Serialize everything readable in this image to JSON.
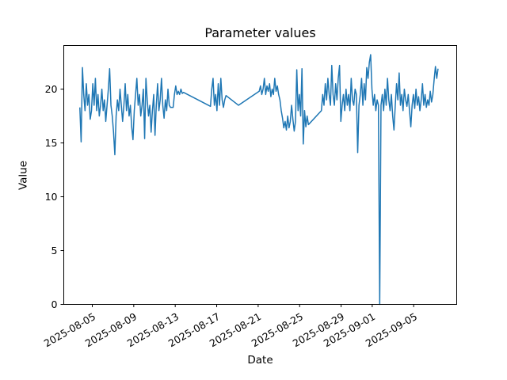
{
  "figure_title": "Parameter values",
  "chart_data": {
    "type": "line",
    "title": "Parameter values",
    "xlabel": "Date",
    "ylabel": "Value",
    "grid": false,
    "legend": null,
    "line_color": "#1f77b4",
    "line_width": 1.5,
    "axis_color": "#000000",
    "background_color": "#ffffff",
    "x_unit": "days since 2025-08-04T00:00",
    "xlim": [
      -1.75,
      36.15
    ],
    "ylim": [
      0,
      24.05
    ],
    "x_ticks": [
      {
        "t": 1,
        "label": "2025-08-05"
      },
      {
        "t": 5,
        "label": "2025-08-09"
      },
      {
        "t": 9,
        "label": "2025-08-13"
      },
      {
        "t": 13,
        "label": "2025-08-17"
      },
      {
        "t": 17,
        "label": "2025-08-21"
      },
      {
        "t": 21,
        "label": "2025-08-25"
      },
      {
        "t": 25,
        "label": "2025-08-29"
      },
      {
        "t": 28,
        "label": "2025-09-01"
      },
      {
        "t": 32,
        "label": "2025-09-05"
      }
    ],
    "y_ticks": [
      0,
      5,
      10,
      15,
      20
    ],
    "x_tick_label_rotation_deg": 30,
    "series": [
      {
        "name": "parameter-values",
        "segments": [
          {
            "t0": -0.2,
            "dt": 0.125,
            "values": [
              18.3,
              15.1,
              22.0,
              19.5,
              18.0,
              20.5,
              18.5,
              19.5,
              17.2,
              18.0,
              20.5,
              18.5,
              21.0,
              18.0,
              19.5,
              17.5,
              18.5,
              20.0,
              18.0,
              19.0,
              17.0,
              18.5,
              20.0,
              21.9,
              18.5,
              17.5,
              16.0,
              13.9,
              17.5,
              19.0,
              18.0,
              20.0,
              18.5,
              17.0,
              18.5,
              20.5,
              18.0,
              19.5,
              17.5,
              18.5,
              16.5,
              15.3,
              18.0,
              19.5,
              21.0,
              18.5,
              19.5,
              17.5,
              18.5,
              20.0,
              15.4,
              21.0,
              19.0,
              17.5,
              18.5,
              16.0,
              18.0,
              19.5,
              15.7,
              18.5,
              20.5,
              18.0,
              19.0,
              21.0,
              18.5,
              17.3,
              19.0,
              18.0,
              20.0,
              18.5,
              18.3,
              18.3,
              18.3,
              19.5,
              20.3,
              19.5,
              19.8,
              19.5,
              20.0,
              19.6,
              19.7
            ]
          },
          {
            "pts": [
              [
                9.8,
                19.7
              ],
              [
                12.4,
                18.4
              ]
            ]
          },
          {
            "t0": 12.4,
            "dt": 0.125,
            "values": [
              18.4,
              20.0,
              21.0,
              18.5,
              19.5,
              18.0,
              20.5,
              18.5,
              21.0,
              19.0,
              18.3,
              19.0,
              19.4
            ]
          },
          {
            "pts": [
              [
                13.9,
                19.4
              ],
              [
                15.1,
                18.5
              ],
              [
                17.1,
                19.8
              ]
            ]
          },
          {
            "t0": 17.1,
            "dt": 0.125,
            "values": [
              19.8,
              20.3,
              19.5,
              20.0,
              21.0,
              19.5,
              20.3,
              19.8,
              20.5,
              19.3,
              20.0,
              19.5,
              21.0,
              19.8,
              20.3,
              19.5,
              19.0,
              18.0,
              17.3,
              16.4,
              17.0,
              16.2,
              17.5,
              16.4,
              17.0,
              18.5,
              17.2,
              16.1,
              17.0,
              21.8,
              18.0,
              19.5,
              17.5,
              21.9,
              14.9,
              18.0,
              16.5,
              17.5,
              16.7
            ]
          },
          {
            "pts": [
              [
                21.85,
                16.7
              ],
              [
                23.1,
                18.0
              ]
            ]
          },
          {
            "t0": 23.1,
            "dt": 0.125,
            "values": [
              18.0,
              19.5,
              18.5,
              20.5,
              19.0,
              21.0,
              19.5,
              18.5,
              22.2,
              19.5,
              18.5,
              20.5,
              19.0,
              21.0,
              22.2,
              17.0,
              18.5,
              19.5,
              18.0,
              20.0,
              18.5,
              19.5,
              18.0,
              21.0,
              19.0,
              18.5,
              20.0,
              19.5,
              14.1,
              18.5,
              19.5,
              21.0,
              18.5,
              20.5,
              19.0,
              22.0,
              21.0,
              22.5,
              23.2,
              20.0,
              18.5,
              19.5,
              18.0,
              19.0,
              18.5,
              0.0,
              18.5,
              19.5,
              18.0,
              20.0,
              18.5,
              21.0,
              19.0,
              18.0,
              19.5,
              17.5,
              16.2,
              18.5,
              20.5,
              19.0,
              21.5,
              18.5,
              19.5,
              18.0,
              20.0,
              19.0,
              18.4,
              19.5,
              18.0,
              16.5,
              18.5,
              19.5,
              18.2,
              20.0,
              18.5,
              19.3,
              18.0,
              19.0,
              20.5,
              18.5,
              19.5,
              18.3,
              19.0,
              18.5,
              19.8,
              18.8,
              19.5,
              20.9,
              22.1,
              21.0,
              21.9
            ]
          }
        ]
      }
    ]
  }
}
